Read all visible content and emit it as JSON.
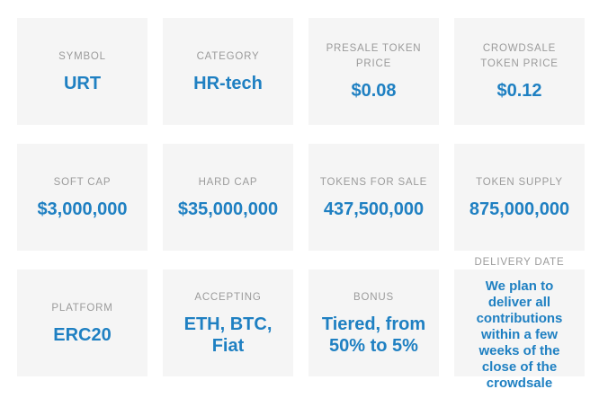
{
  "colors": {
    "card_background": "#f5f5f5",
    "label_gray": "#9b9b9b",
    "value_blue": "#1f80c2",
    "page_background": "#ffffff"
  },
  "cards": [
    {
      "id": "symbol",
      "label": "SYMBOL",
      "value": "URT"
    },
    {
      "id": "category",
      "label": "CATEGORY",
      "value": "HR-tech"
    },
    {
      "id": "presale-token-price",
      "label": "PRESALE TOKEN\nPRICE",
      "value": "$0.08"
    },
    {
      "id": "crowdsale-token-price",
      "label": "CROWDSALE\nTOKEN PRICE",
      "value": "$0.12"
    },
    {
      "id": "soft-cap",
      "label": "SOFT CAP",
      "value": "$3,000,000"
    },
    {
      "id": "hard-cap",
      "label": "HARD CAP",
      "value": "$35,000,000"
    },
    {
      "id": "tokens-for-sale",
      "label": "TOKENS FOR SALE",
      "value": "437,500,000"
    },
    {
      "id": "token-supply",
      "label": "TOKEN SUPPLY",
      "value": "875,000,000"
    },
    {
      "id": "platform",
      "label": "PLATFORM",
      "value": "ERC20"
    },
    {
      "id": "accepting",
      "label": "ACCEPTING",
      "value": "ETH, BTC,\nFiat"
    },
    {
      "id": "bonus",
      "label": "BONUS",
      "value": "Tiered, from\n50% to 5%"
    },
    {
      "id": "delivery-date",
      "label": "DELIVERY DATE",
      "value": "We plan to\ndeliver all\ncontributions\nwithin a few\nweeks of the\nclose of the\ncrowdsale"
    }
  ]
}
